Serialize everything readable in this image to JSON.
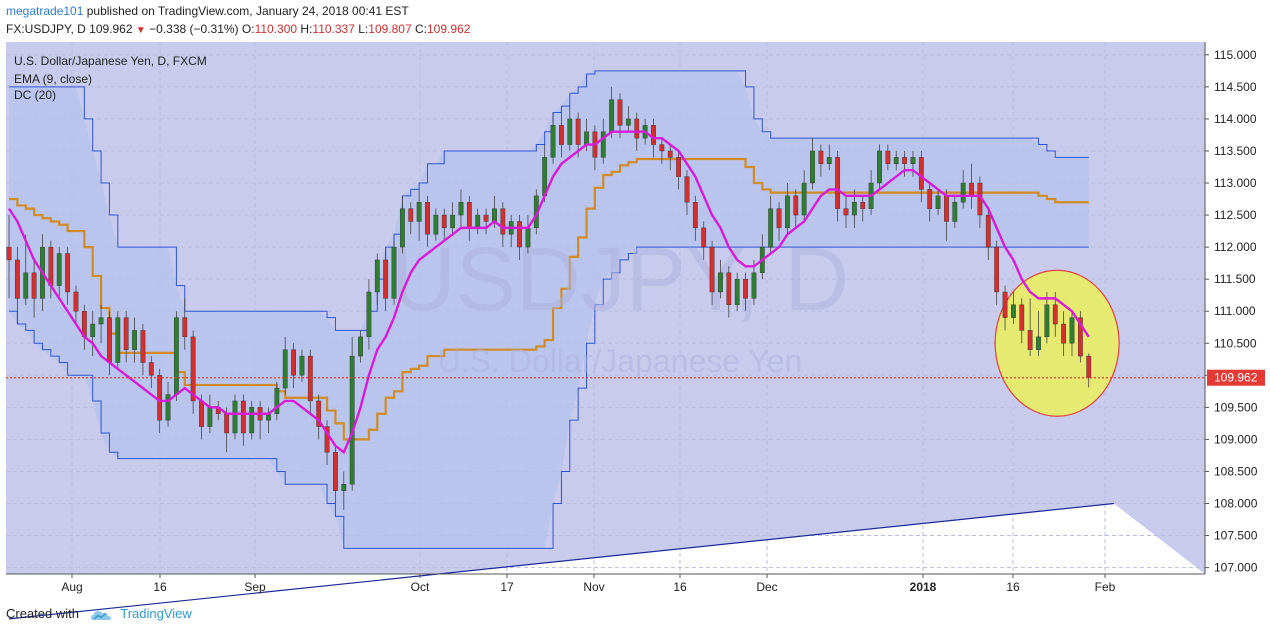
{
  "header": {
    "user": "megatrade101",
    "published": "published on TradingView.com, January 24, 2018 00:41 EST",
    "symbol": "FX:USDJPY, D",
    "last": "109.962",
    "change": "−0.338 (−0.31%)",
    "o_label": "O:",
    "o_value": "110.300",
    "h_label": "H:",
    "h_value": "110.337",
    "l_label": "L:",
    "l_value": "109.807",
    "c_label": "C:",
    "c_value": "109.962"
  },
  "legend": {
    "instrument": "U.S. Dollar/Japanese Yen, D, FXCM",
    "ema": "EMA (9, close)",
    "dc": "DC (20)"
  },
  "watermark": {
    "ticker": "USDJPY, D",
    "name": "U.S. Dollar/Japanese Yen"
  },
  "footer": {
    "created_with": "Created with",
    "brand": "TradingView"
  },
  "colors": {
    "up": "#2e7d32",
    "down": "#d32f2f",
    "ema": "#d81bd8",
    "dc_mid": "#d08a26",
    "dc_band": "#2e55d6",
    "highlight": "#e8ec6a",
    "grid": "#b8bce0"
  },
  "chart_data": {
    "type": "candlestick",
    "y_range": [
      106.9,
      115.2
    ],
    "y_ticks": [
      "115.000",
      "114.500",
      "114.000",
      "113.500",
      "113.000",
      "112.500",
      "112.000",
      "111.500",
      "111.000",
      "110.500",
      "110.000",
      "109.500",
      "109.000",
      "108.500",
      "108.000",
      "107.500",
      "107.000"
    ],
    "x_ticks": [
      "Aug",
      "16",
      "Sep",
      "Oct",
      "17",
      "Nov",
      "16",
      "Dec",
      "2018",
      "16",
      "Feb"
    ],
    "last_price_label": "109.962",
    "last_price": 109.962,
    "candles": [
      [
        112.0,
        111.8,
        112.5,
        111.2
      ],
      [
        111.8,
        111.2,
        112.0,
        110.8
      ],
      [
        111.2,
        111.6,
        112.2,
        111.1
      ],
      [
        111.6,
        111.2,
        111.8,
        110.9
      ],
      [
        111.2,
        112.0,
        112.2,
        111.0
      ],
      [
        112.0,
        111.4,
        112.1,
        111.2
      ],
      [
        111.4,
        111.9,
        112.0,
        111.2
      ],
      [
        111.9,
        111.3,
        112.0,
        111.1
      ],
      [
        111.3,
        111.0,
        111.4,
        110.8
      ],
      [
        111.0,
        110.6,
        111.1,
        110.4
      ],
      [
        110.6,
        110.8,
        111.0,
        110.3
      ],
      [
        110.8,
        110.9,
        111.1,
        110.5
      ],
      [
        110.9,
        110.2,
        111.0,
        110.0
      ],
      [
        110.2,
        110.9,
        111.0,
        110.1
      ],
      [
        110.9,
        110.4,
        111.0,
        110.2
      ],
      [
        110.4,
        110.7,
        110.9,
        110.2
      ],
      [
        110.7,
        110.2,
        110.8,
        110.0
      ],
      [
        110.2,
        110.0,
        110.3,
        109.8
      ],
      [
        110.0,
        109.3,
        110.1,
        109.1
      ],
      [
        109.3,
        109.7,
        109.9,
        109.2
      ],
      [
        109.7,
        110.9,
        111.0,
        109.6
      ],
      [
        110.9,
        110.6,
        111.2,
        110.4
      ],
      [
        110.6,
        109.6,
        110.7,
        109.4
      ],
      [
        109.6,
        109.2,
        109.7,
        109.0
      ],
      [
        109.2,
        109.5,
        109.7,
        109.1
      ],
      [
        109.5,
        109.4,
        109.6,
        109.3
      ],
      [
        109.4,
        109.1,
        109.5,
        108.8
      ],
      [
        109.1,
        109.6,
        109.7,
        109.0
      ],
      [
        109.6,
        109.1,
        109.7,
        108.9
      ],
      [
        109.1,
        109.5,
        109.6,
        109.0
      ],
      [
        109.5,
        109.3,
        109.6,
        109.0
      ],
      [
        109.3,
        109.4,
        109.5,
        109.1
      ],
      [
        109.4,
        109.8,
        109.9,
        109.3
      ],
      [
        109.8,
        110.4,
        110.6,
        109.7
      ],
      [
        110.4,
        110.0,
        110.5,
        109.8
      ],
      [
        110.0,
        110.3,
        110.4,
        109.9
      ],
      [
        110.3,
        109.6,
        110.4,
        109.4
      ],
      [
        109.6,
        109.2,
        109.7,
        109.0
      ],
      [
        109.2,
        108.8,
        109.3,
        108.6
      ],
      [
        108.8,
        108.2,
        108.9,
        108.0
      ],
      [
        108.2,
        108.3,
        108.5,
        107.9
      ],
      [
        108.3,
        110.3,
        110.6,
        108.2
      ],
      [
        110.3,
        110.6,
        110.7,
        110.2
      ],
      [
        110.6,
        111.3,
        111.5,
        110.4
      ],
      [
        111.3,
        111.8,
        111.9,
        111.1
      ],
      [
        111.8,
        111.2,
        112.0,
        111.0
      ],
      [
        111.2,
        112.0,
        112.1,
        111.1
      ],
      [
        112.0,
        112.6,
        112.8,
        111.9
      ],
      [
        112.6,
        112.4,
        112.7,
        112.2
      ],
      [
        112.4,
        112.7,
        112.9,
        112.1
      ],
      [
        112.7,
        112.2,
        112.8,
        112.0
      ],
      [
        112.2,
        112.5,
        112.6,
        112.1
      ],
      [
        112.5,
        112.3,
        112.6,
        112.1
      ],
      [
        112.3,
        112.5,
        112.7,
        112.2
      ],
      [
        112.5,
        112.7,
        112.9,
        112.3
      ],
      [
        112.7,
        112.3,
        112.8,
        112.1
      ],
      [
        112.3,
        112.5,
        112.6,
        112.2
      ],
      [
        112.5,
        112.4,
        112.6,
        112.2
      ],
      [
        112.4,
        112.6,
        112.8,
        112.3
      ],
      [
        112.6,
        112.2,
        112.7,
        112.0
      ],
      [
        112.2,
        112.4,
        112.5,
        112.0
      ],
      [
        112.4,
        112.0,
        112.5,
        111.8
      ],
      [
        112.0,
        112.3,
        112.5,
        111.9
      ],
      [
        112.3,
        112.8,
        112.9,
        112.2
      ],
      [
        112.8,
        113.4,
        113.6,
        112.7
      ],
      [
        113.4,
        113.9,
        114.1,
        113.3
      ],
      [
        113.9,
        113.6,
        114.1,
        113.4
      ],
      [
        113.6,
        114.0,
        114.2,
        113.5
      ],
      [
        114.0,
        113.6,
        114.1,
        113.4
      ],
      [
        113.6,
        113.8,
        114.0,
        113.5
      ],
      [
        113.8,
        113.4,
        113.9,
        113.2
      ],
      [
        113.4,
        113.8,
        114.0,
        113.3
      ],
      [
        113.8,
        114.3,
        114.5,
        113.7
      ],
      [
        114.3,
        113.9,
        114.4,
        113.7
      ],
      [
        113.9,
        114.0,
        114.2,
        113.8
      ],
      [
        114.0,
        113.7,
        114.1,
        113.5
      ],
      [
        113.7,
        113.9,
        114.0,
        113.6
      ],
      [
        113.9,
        113.6,
        114.0,
        113.4
      ],
      [
        113.6,
        113.5,
        113.7,
        113.3
      ],
      [
        113.5,
        113.4,
        113.6,
        113.2
      ],
      [
        113.4,
        113.1,
        113.5,
        112.9
      ],
      [
        113.1,
        112.7,
        113.2,
        112.5
      ],
      [
        112.7,
        112.3,
        112.8,
        112.1
      ],
      [
        112.3,
        112.0,
        112.4,
        111.8
      ],
      [
        112.0,
        111.3,
        112.1,
        111.1
      ],
      [
        111.3,
        111.6,
        111.8,
        111.2
      ],
      [
        111.6,
        111.1,
        111.7,
        110.9
      ],
      [
        111.1,
        111.5,
        111.6,
        111.0
      ],
      [
        111.5,
        111.2,
        111.6,
        111.0
      ],
      [
        111.2,
        111.6,
        111.8,
        111.1
      ],
      [
        111.6,
        112.0,
        112.2,
        111.5
      ],
      [
        112.0,
        112.6,
        112.8,
        111.9
      ],
      [
        112.6,
        112.3,
        112.7,
        112.1
      ],
      [
        112.3,
        112.8,
        113.0,
        112.2
      ],
      [
        112.8,
        112.5,
        112.9,
        112.3
      ],
      [
        112.5,
        113.0,
        113.2,
        112.4
      ],
      [
        113.0,
        113.5,
        113.7,
        112.9
      ],
      [
        113.5,
        113.3,
        113.6,
        113.1
      ],
      [
        113.3,
        113.4,
        113.6,
        113.2
      ],
      [
        113.4,
        112.6,
        113.5,
        112.4
      ],
      [
        112.6,
        112.5,
        112.8,
        112.3
      ],
      [
        112.5,
        112.7,
        112.9,
        112.3
      ],
      [
        112.7,
        112.6,
        112.8,
        112.4
      ],
      [
        112.6,
        113.0,
        113.2,
        112.5
      ],
      [
        113.0,
        113.5,
        113.6,
        112.9
      ],
      [
        113.5,
        113.3,
        113.6,
        113.2
      ],
      [
        113.3,
        113.4,
        113.5,
        113.2
      ],
      [
        113.4,
        113.3,
        113.5,
        113.1
      ],
      [
        113.3,
        113.4,
        113.5,
        113.1
      ],
      [
        113.4,
        112.9,
        113.5,
        112.7
      ],
      [
        112.9,
        112.6,
        113.0,
        112.4
      ],
      [
        112.6,
        112.8,
        112.9,
        112.5
      ],
      [
        112.8,
        112.4,
        112.9,
        112.1
      ],
      [
        112.4,
        112.7,
        112.8,
        112.3
      ],
      [
        112.7,
        113.0,
        113.2,
        112.6
      ],
      [
        113.0,
        112.8,
        113.3,
        112.6
      ],
      [
        113.0,
        112.5,
        113.1,
        112.3
      ],
      [
        112.5,
        112.0,
        112.6,
        111.8
      ],
      [
        112.0,
        111.3,
        112.1,
        111.1
      ],
      [
        111.3,
        110.9,
        111.4,
        110.7
      ],
      [
        110.9,
        111.1,
        111.3,
        110.8
      ],
      [
        111.1,
        110.7,
        111.2,
        110.5
      ],
      [
        110.7,
        110.4,
        111.2,
        110.3
      ],
      [
        110.4,
        110.6,
        111.0,
        110.3
      ],
      [
        110.6,
        111.1,
        111.3,
        110.5
      ],
      [
        111.1,
        110.8,
        111.3,
        110.6
      ],
      [
        110.8,
        110.5,
        111.0,
        110.3
      ],
      [
        110.5,
        110.9,
        111.0,
        110.3
      ],
      [
        110.9,
        110.3,
        111.0,
        110.2
      ],
      [
        110.3,
        109.96,
        110.34,
        109.81
      ]
    ],
    "ema9": [
      112.6,
      112.4,
      112.1,
      111.8,
      111.6,
      111.4,
      111.2,
      111.0,
      110.8,
      110.6,
      110.5,
      110.3,
      110.2,
      110.1,
      110.0,
      109.9,
      109.8,
      109.7,
      109.6,
      109.6,
      109.7,
      109.8,
      109.7,
      109.6,
      109.5,
      109.5,
      109.4,
      109.4,
      109.4,
      109.4,
      109.4,
      109.4,
      109.5,
      109.6,
      109.6,
      109.5,
      109.4,
      109.3,
      109.1,
      108.9,
      108.8,
      109.1,
      109.5,
      110.0,
      110.4,
      110.6,
      110.9,
      111.3,
      111.6,
      111.8,
      111.9,
      112.0,
      112.1,
      112.2,
      112.3,
      112.3,
      112.3,
      112.3,
      112.4,
      112.3,
      112.3,
      112.3,
      112.3,
      112.5,
      112.8,
      113.1,
      113.3,
      113.4,
      113.5,
      113.6,
      113.6,
      113.7,
      113.8,
      113.8,
      113.8,
      113.8,
      113.8,
      113.7,
      113.7,
      113.6,
      113.5,
      113.3,
      113.1,
      112.8,
      112.5,
      112.3,
      112.0,
      111.8,
      111.7,
      111.7,
      111.8,
      111.9,
      112.0,
      112.2,
      112.3,
      112.4,
      112.6,
      112.8,
      112.9,
      112.9,
      112.8,
      112.8,
      112.8,
      112.8,
      112.9,
      113.0,
      113.1,
      113.2,
      113.2,
      113.1,
      113.0,
      112.9,
      112.8,
      112.8,
      112.8,
      112.8,
      112.8,
      112.6,
      112.3,
      112.0,
      111.8,
      111.5,
      111.3,
      111.2,
      111.2,
      111.2,
      111.1,
      111.0,
      110.8,
      110.6
    ],
    "dc_upper": [
      114.5,
      114.5,
      114.5,
      114.5,
      114.5,
      114.5,
      114.5,
      114.5,
      114.5,
      114.0,
      113.5,
      113.0,
      112.5,
      112.0,
      112.0,
      112.0,
      112.0,
      112.0,
      112.0,
      112.0,
      111.4,
      111.0,
      111.0,
      111.0,
      111.0,
      111.0,
      111.0,
      111.0,
      111.0,
      111.0,
      111.0,
      111.0,
      111.0,
      111.0,
      111.0,
      111.0,
      111.0,
      111.0,
      110.9,
      110.7,
      110.7,
      110.7,
      110.7,
      111.0,
      111.5,
      112.0,
      112.2,
      112.8,
      112.9,
      113.0,
      113.3,
      113.3,
      113.5,
      113.5,
      113.5,
      113.5,
      113.5,
      113.5,
      113.5,
      113.5,
      113.5,
      113.5,
      113.5,
      113.6,
      113.8,
      114.1,
      114.2,
      114.4,
      114.5,
      114.7,
      114.75,
      114.75,
      114.75,
      114.75,
      114.75,
      114.75,
      114.75,
      114.75,
      114.75,
      114.75,
      114.75,
      114.75,
      114.75,
      114.75,
      114.75,
      114.75,
      114.75,
      114.75,
      114.5,
      114.0,
      113.8,
      113.7,
      113.7,
      113.7,
      113.7,
      113.7,
      113.7,
      113.7,
      113.7,
      113.7,
      113.7,
      113.7,
      113.7,
      113.7,
      113.7,
      113.7,
      113.7,
      113.7,
      113.7,
      113.7,
      113.7,
      113.7,
      113.7,
      113.7,
      113.7,
      113.7,
      113.7,
      113.7,
      113.7,
      113.7,
      113.7,
      113.7,
      113.7,
      113.6,
      113.5,
      113.4,
      113.4,
      113.4,
      113.4,
      113.4
    ],
    "dc_lower": [
      111.0,
      110.8,
      110.7,
      110.5,
      110.4,
      110.3,
      110.2,
      110.0,
      110.0,
      110.0,
      109.6,
      109.1,
      108.8,
      108.7,
      108.7,
      108.7,
      108.7,
      108.7,
      108.7,
      108.7,
      108.7,
      108.7,
      108.7,
      108.7,
      108.7,
      108.7,
      108.7,
      108.7,
      108.7,
      108.7,
      108.7,
      108.7,
      108.5,
      108.3,
      108.3,
      108.3,
      108.3,
      108.3,
      108.0,
      107.8,
      107.3,
      107.3,
      107.3,
      107.3,
      107.3,
      107.3,
      107.3,
      107.3,
      107.3,
      107.3,
      107.3,
      107.3,
      107.3,
      107.3,
      107.3,
      107.3,
      107.3,
      107.3,
      107.3,
      107.3,
      107.3,
      107.3,
      107.3,
      107.3,
      107.3,
      108.0,
      108.5,
      109.3,
      109.8,
      110.5,
      111.1,
      111.5,
      111.6,
      111.8,
      111.9,
      112.0,
      112.0,
      112.0,
      112.0,
      112.0,
      112.0,
      112.0,
      112.0,
      112.0,
      112.0,
      112.0,
      112.0,
      112.0,
      112.0,
      112.0,
      112.0,
      112.0,
      112.0,
      112.0,
      112.0,
      112.0,
      112.0,
      112.0,
      112.0,
      112.0,
      112.0,
      112.0,
      112.0,
      112.0,
      112.0,
      112.0,
      112.0,
      112.0,
      112.0,
      112.0,
      112.0,
      112.0,
      112.0,
      112.0,
      112.0,
      112.0,
      112.0,
      112.0,
      112.0,
      112.0,
      112.0,
      112.0,
      112.0,
      112.0,
      112.0,
      112.0,
      112.0,
      112.0,
      112.0,
      112.0
    ],
    "trendline": [
      [
        0,
        106.2
      ],
      [
        132,
        108.0
      ]
    ],
    "highlight_circle": {
      "center_index": 130,
      "center_price": 110.5,
      "note": ""
    }
  }
}
